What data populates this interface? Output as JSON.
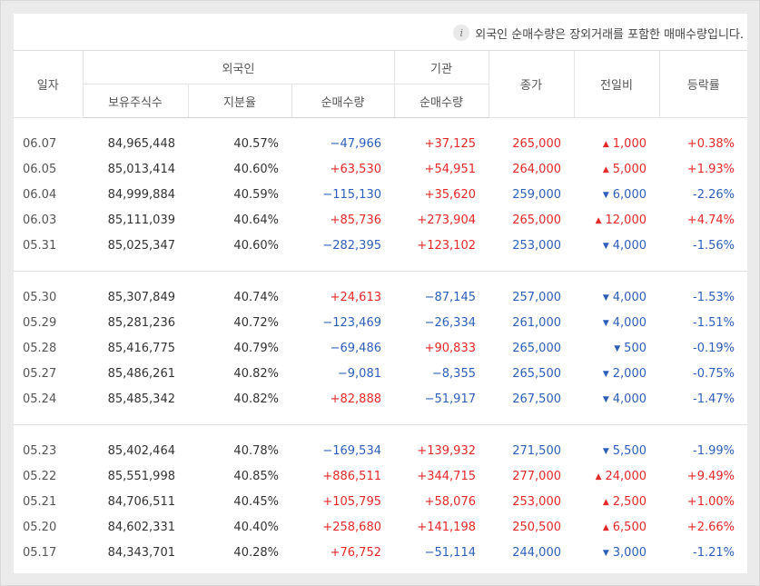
{
  "notice": "외국인 순매수량은 장외거래를 포함한 매매수량입니다.",
  "headers": {
    "date": "일자",
    "foreign": "외국인",
    "institution": "기관",
    "close": "종가",
    "change": "전일비",
    "rate": "등락률",
    "holdings": "보유주식수",
    "share": "지분율",
    "foreign_net": "순매수량",
    "inst_net": "순매수량"
  },
  "rows": [
    {
      "date": "06.07",
      "holdings": "84,965,448",
      "share": "40.57%",
      "foreign_net": "−47,966",
      "foreign_dir": "down",
      "inst_net": "+37,125",
      "inst_dir": "up",
      "close": "265,000",
      "close_dir": "up",
      "change": "1,000",
      "change_dir": "up",
      "rate": "+0.38%",
      "rate_dir": "up"
    },
    {
      "date": "06.05",
      "holdings": "85,013,414",
      "share": "40.60%",
      "foreign_net": "+63,530",
      "foreign_dir": "up",
      "inst_net": "+54,951",
      "inst_dir": "up",
      "close": "264,000",
      "close_dir": "up",
      "change": "5,000",
      "change_dir": "up",
      "rate": "+1.93%",
      "rate_dir": "up"
    },
    {
      "date": "06.04",
      "holdings": "84,999,884",
      "share": "40.59%",
      "foreign_net": "−115,130",
      "foreign_dir": "down",
      "inst_net": "+35,620",
      "inst_dir": "up",
      "close": "259,000",
      "close_dir": "down",
      "change": "6,000",
      "change_dir": "down",
      "rate": "-2.26%",
      "rate_dir": "down"
    },
    {
      "date": "06.03",
      "holdings": "85,111,039",
      "share": "40.64%",
      "foreign_net": "+85,736",
      "foreign_dir": "up",
      "inst_net": "+273,904",
      "inst_dir": "up",
      "close": "265,000",
      "close_dir": "up",
      "change": "12,000",
      "change_dir": "up",
      "rate": "+4.74%",
      "rate_dir": "up"
    },
    {
      "date": "05.31",
      "holdings": "85,025,347",
      "share": "40.60%",
      "foreign_net": "−282,395",
      "foreign_dir": "down",
      "inst_net": "+123,102",
      "inst_dir": "up",
      "close": "253,000",
      "close_dir": "down",
      "change": "4,000",
      "change_dir": "down",
      "rate": "-1.56%",
      "rate_dir": "down"
    },
    {
      "date": "05.30",
      "holdings": "85,307,849",
      "share": "40.74%",
      "foreign_net": "+24,613",
      "foreign_dir": "up",
      "inst_net": "−87,145",
      "inst_dir": "down",
      "close": "257,000",
      "close_dir": "down",
      "change": "4,000",
      "change_dir": "down",
      "rate": "-1.53%",
      "rate_dir": "down"
    },
    {
      "date": "05.29",
      "holdings": "85,281,236",
      "share": "40.72%",
      "foreign_net": "−123,469",
      "foreign_dir": "down",
      "inst_net": "−26,334",
      "inst_dir": "down",
      "close": "261,000",
      "close_dir": "down",
      "change": "4,000",
      "change_dir": "down",
      "rate": "-1.51%",
      "rate_dir": "down"
    },
    {
      "date": "05.28",
      "holdings": "85,416,775",
      "share": "40.79%",
      "foreign_net": "−69,486",
      "foreign_dir": "down",
      "inst_net": "+90,833",
      "inst_dir": "up",
      "close": "265,000",
      "close_dir": "down",
      "change": "500",
      "change_dir": "down",
      "rate": "-0.19%",
      "rate_dir": "down"
    },
    {
      "date": "05.27",
      "holdings": "85,486,261",
      "share": "40.82%",
      "foreign_net": "−9,081",
      "foreign_dir": "down",
      "inst_net": "−8,355",
      "inst_dir": "down",
      "close": "265,500",
      "close_dir": "down",
      "change": "2,000",
      "change_dir": "down",
      "rate": "-0.75%",
      "rate_dir": "down"
    },
    {
      "date": "05.24",
      "holdings": "85,485,342",
      "share": "40.82%",
      "foreign_net": "+82,888",
      "foreign_dir": "up",
      "inst_net": "−51,917",
      "inst_dir": "down",
      "close": "267,500",
      "close_dir": "down",
      "change": "4,000",
      "change_dir": "down",
      "rate": "-1.47%",
      "rate_dir": "down"
    },
    {
      "date": "05.23",
      "holdings": "85,402,464",
      "share": "40.78%",
      "foreign_net": "−169,534",
      "foreign_dir": "down",
      "inst_net": "+139,932",
      "inst_dir": "up",
      "close": "271,500",
      "close_dir": "down",
      "change": "5,500",
      "change_dir": "down",
      "rate": "-1.99%",
      "rate_dir": "down"
    },
    {
      "date": "05.22",
      "holdings": "85,551,998",
      "share": "40.85%",
      "foreign_net": "+886,511",
      "foreign_dir": "up",
      "inst_net": "+344,715",
      "inst_dir": "up",
      "close": "277,000",
      "close_dir": "up",
      "change": "24,000",
      "change_dir": "up",
      "rate": "+9.49%",
      "rate_dir": "up"
    },
    {
      "date": "05.21",
      "holdings": "84,706,511",
      "share": "40.45%",
      "foreign_net": "+105,795",
      "foreign_dir": "up",
      "inst_net": "+58,076",
      "inst_dir": "up",
      "close": "253,000",
      "close_dir": "up",
      "change": "2,500",
      "change_dir": "up",
      "rate": "+1.00%",
      "rate_dir": "up"
    },
    {
      "date": "05.20",
      "holdings": "84,602,331",
      "share": "40.40%",
      "foreign_net": "+258,680",
      "foreign_dir": "up",
      "inst_net": "+141,198",
      "inst_dir": "up",
      "close": "250,500",
      "close_dir": "up",
      "change": "6,500",
      "change_dir": "up",
      "rate": "+2.66%",
      "rate_dir": "up"
    },
    {
      "date": "05.17",
      "holdings": "84,343,701",
      "share": "40.28%",
      "foreign_net": "+76,752",
      "foreign_dir": "up",
      "inst_net": "−51,114",
      "inst_dir": "down",
      "close": "244,000",
      "close_dir": "down",
      "change": "3,000",
      "change_dir": "down",
      "rate": "-1.21%",
      "rate_dir": "down"
    }
  ],
  "group_size": 5,
  "colors": {
    "up": "#e22a2a",
    "down": "#2e5fb8"
  }
}
